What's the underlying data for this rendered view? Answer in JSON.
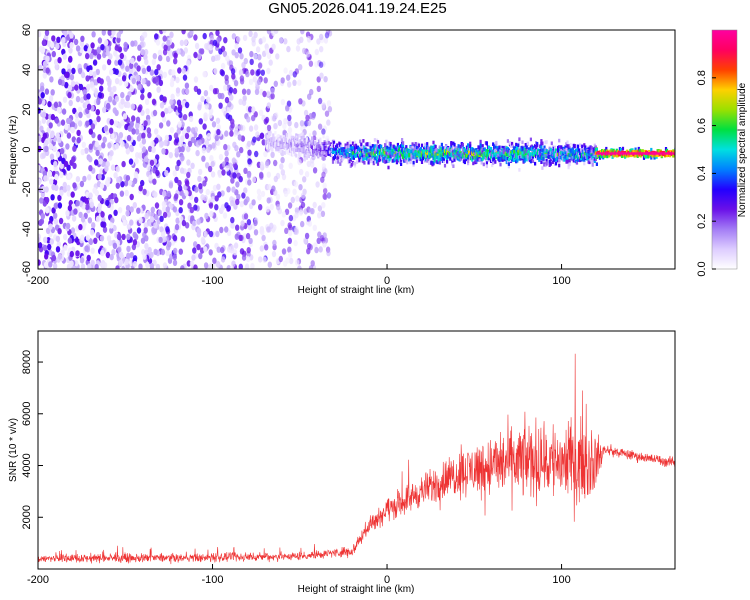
{
  "title": "GN05.2026.041.19.24.E25",
  "chart_data": [
    {
      "type": "heatmap",
      "xlabel": "Height of straight line (km)",
      "ylabel": "Frequency (Hz)",
      "xlim": [
        -200,
        165
      ],
      "ylim": [
        -60,
        60
      ],
      "x_ticks": [
        -200,
        -100,
        0,
        100
      ],
      "y_ticks": [
        -60,
        -40,
        -20,
        0,
        20,
        40,
        60
      ],
      "colorbar": {
        "label": "Normalized spectral amplitude",
        "range": [
          0,
          1
        ],
        "ticks": [
          "0.0",
          "0.2",
          "0.4",
          "0.6",
          "0.8"
        ],
        "colors": [
          "#ffffff",
          "#ddccff",
          "#a37cf5",
          "#6a10e8",
          "#2200ff",
          "#0080ff",
          "#00e0e0",
          "#00e040",
          "#9be000",
          "#ffd000",
          "#ff4000",
          "#ff0060",
          "#ff00a0"
        ]
      },
      "noise_band_x": [
        -200,
        -32
      ],
      "ridge": [
        {
          "x": -70,
          "frequency": 3.5,
          "amplitude": 0.12
        },
        {
          "x": -60,
          "frequency": 3.0,
          "amplitude": 0.15
        },
        {
          "x": -50,
          "frequency": 2.0,
          "amplitude": 0.18
        },
        {
          "x": -40,
          "frequency": 0.5,
          "amplitude": 0.25
        },
        {
          "x": -30,
          "frequency": -1.0,
          "amplitude": 0.5
        },
        {
          "x": -20,
          "frequency": -2.0,
          "amplitude": 0.6
        },
        {
          "x": 0,
          "frequency": -2.0,
          "amplitude": 0.7
        },
        {
          "x": 20,
          "frequency": -2.0,
          "amplitude": 0.7
        },
        {
          "x": 40,
          "frequency": -2.0,
          "amplitude": 0.75
        },
        {
          "x": 60,
          "frequency": -2.0,
          "amplitude": 0.7
        },
        {
          "x": 80,
          "frequency": -2.0,
          "amplitude": 0.65
        },
        {
          "x": 100,
          "frequency": -2.5,
          "amplitude": 0.6
        },
        {
          "x": 118,
          "frequency": -2.5,
          "amplitude": 0.6
        },
        {
          "x": 120,
          "frequency": -2.0,
          "amplitude": 1.0
        },
        {
          "x": 165,
          "frequency": -2.0,
          "amplitude": 1.0
        }
      ]
    },
    {
      "type": "line",
      "xlabel": "Height of straight line (km)",
      "ylabel": "SNR (10 * v/v)",
      "xlim": [
        -200,
        165
      ],
      "ylim": [
        0,
        9200
      ],
      "x_ticks": [
        -200,
        -100,
        0,
        100
      ],
      "y_ticks": [
        2000,
        4000,
        6000,
        8000
      ],
      "series": [
        {
          "color": "#ee3333",
          "envelope": [
            {
              "x": -200,
              "mean": 400,
              "spread": 250
            },
            {
              "x": -150,
              "mean": 420,
              "spread": 250
            },
            {
              "x": -100,
              "mean": 430,
              "spread": 250
            },
            {
              "x": -50,
              "mean": 500,
              "spread": 250
            },
            {
              "x": -20,
              "mean": 700,
              "spread": 300
            },
            {
              "x": -10,
              "mean": 1700,
              "spread": 500
            },
            {
              "x": 0,
              "mean": 2300,
              "spread": 700
            },
            {
              "x": 20,
              "mean": 3000,
              "spread": 900
            },
            {
              "x": 40,
              "mean": 3700,
              "spread": 1300
            },
            {
              "x": 60,
              "mean": 4000,
              "spread": 1800
            },
            {
              "x": 80,
              "mean": 4200,
              "spread": 2200
            },
            {
              "x": 100,
              "mean": 4200,
              "spread": 2400
            },
            {
              "x": 118,
              "mean": 4100,
              "spread": 2000
            },
            {
              "x": 125,
              "mean": 4600,
              "spread": 300
            },
            {
              "x": 140,
              "mean": 4400,
              "spread": 300
            },
            {
              "x": 165,
              "mean": 4100,
              "spread": 300
            }
          ]
        }
      ]
    }
  ]
}
